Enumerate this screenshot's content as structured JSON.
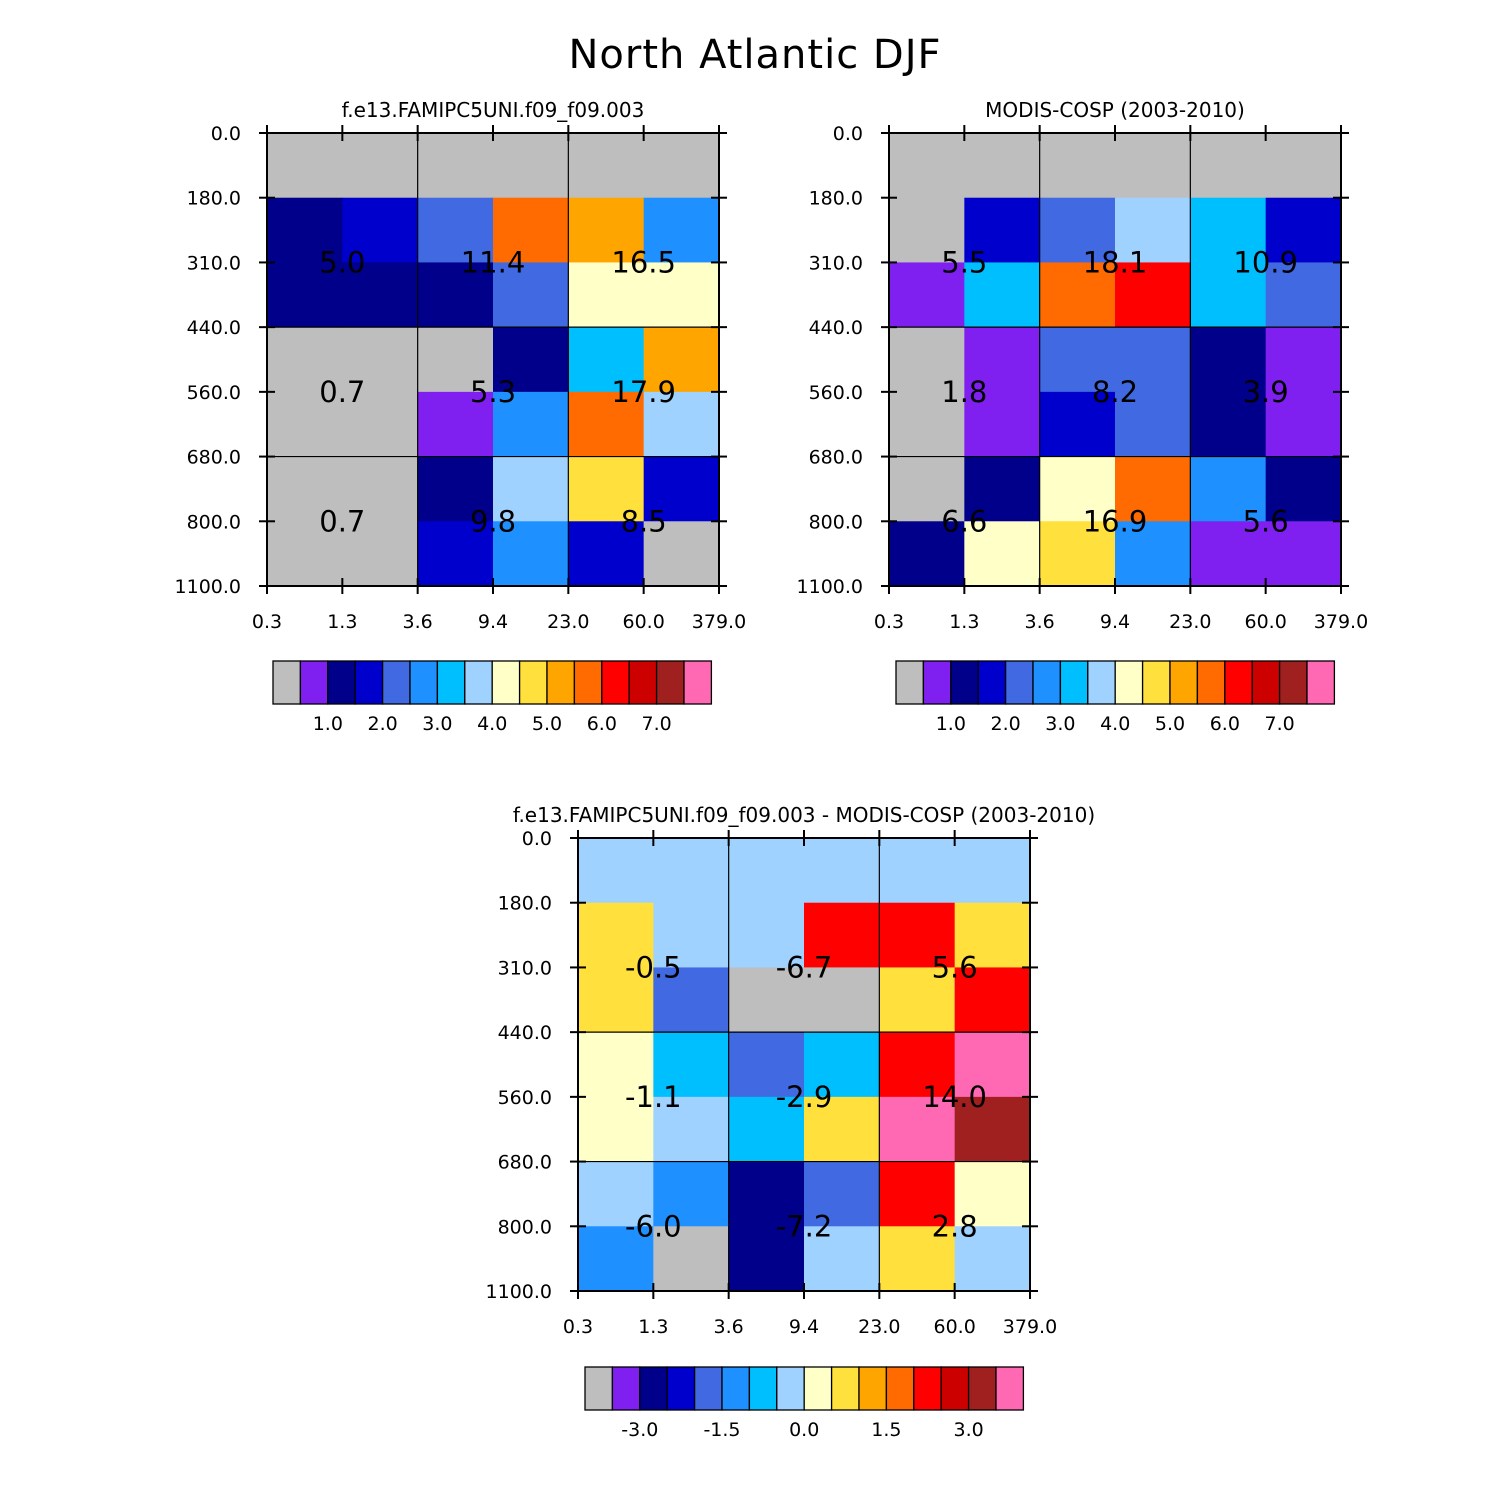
{
  "title": "North Atlantic DJF",
  "colors": {
    "palette": [
      "#bebebe",
      "#8020f0",
      "#00008b",
      "#0000cd",
      "#4169e1",
      "#1e90ff",
      "#00bfff",
      "#a0d2ff",
      "#ffffc8",
      "#ffe03c",
      "#ffa500",
      "#ff6b00",
      "#ff0000",
      "#cd0000",
      "#a02020",
      "#ff69b4"
    ]
  },
  "chart_data": [
    {
      "type": "heatmap",
      "title": "f.e13.FAMIPC5UNI.f09_f09.003",
      "xticks": [
        "0.3",
        "1.3",
        "3.6",
        "9.4",
        "23.0",
        "60.0",
        "379.0"
      ],
      "yticks": [
        "0.0",
        "180.0",
        "310.0",
        "440.0",
        "560.0",
        "680.0",
        "800.0",
        "1100.0"
      ],
      "cells": [
        [
          0,
          0,
          0,
          0,
          0,
          0
        ],
        [
          2,
          3,
          4,
          11,
          10,
          5
        ],
        [
          2,
          2,
          2,
          4,
          8,
          8
        ],
        [
          0,
          0,
          0,
          2,
          6,
          10
        ],
        [
          0,
          0,
          1,
          5,
          11,
          7
        ],
        [
          0,
          0,
          2,
          7,
          9,
          3
        ],
        [
          0,
          0,
          3,
          5,
          3,
          0
        ]
      ],
      "cell_values": [
        "5.0",
        "11.4",
        "16.5",
        "0.7",
        "5.3",
        "17.9",
        "0.7",
        "9.8",
        "8.5"
      ],
      "colorbar": {
        "labels": [
          "1.0",
          "2.0",
          "3.0",
          "4.0",
          "5.0",
          "6.0",
          "7.0"
        ]
      }
    },
    {
      "type": "heatmap",
      "title": "MODIS-COSP (2003-2010)",
      "xticks": [
        "0.3",
        "1.3",
        "3.6",
        "9.4",
        "23.0",
        "60.0",
        "379.0"
      ],
      "yticks": [
        "0.0",
        "180.0",
        "310.0",
        "440.0",
        "560.0",
        "680.0",
        "800.0",
        "1100.0"
      ],
      "cells": [
        [
          0,
          0,
          0,
          0,
          0,
          0
        ],
        [
          0,
          3,
          4,
          7,
          6,
          3
        ],
        [
          1,
          6,
          11,
          12,
          6,
          4
        ],
        [
          0,
          1,
          4,
          4,
          2,
          1
        ],
        [
          0,
          1,
          3,
          4,
          2,
          1
        ],
        [
          0,
          2,
          8,
          11,
          5,
          2
        ],
        [
          2,
          8,
          9,
          5,
          1,
          1
        ]
      ],
      "cell_values": [
        "5.5",
        "18.1",
        "10.9",
        "1.8",
        "8.2",
        "3.9",
        "6.6",
        "16.9",
        "5.6"
      ],
      "colorbar": {
        "labels": [
          "1.0",
          "2.0",
          "3.0",
          "4.0",
          "5.0",
          "6.0",
          "7.0"
        ]
      }
    },
    {
      "type": "heatmap",
      "title": "f.e13.FAMIPC5UNI.f09_f09.003 - MODIS-COSP (2003-2010)",
      "xticks": [
        "0.3",
        "1.3",
        "3.6",
        "9.4",
        "23.0",
        "60.0",
        "379.0"
      ],
      "yticks": [
        "0.0",
        "180.0",
        "310.0",
        "440.0",
        "560.0",
        "680.0",
        "800.0",
        "1100.0"
      ],
      "cells": [
        [
          7,
          7,
          7,
          7,
          7,
          7
        ],
        [
          9,
          7,
          7,
          12,
          12,
          9
        ],
        [
          9,
          4,
          0,
          0,
          9,
          12
        ],
        [
          8,
          6,
          4,
          6,
          12,
          15
        ],
        [
          8,
          7,
          6,
          9,
          15,
          14
        ],
        [
          7,
          5,
          2,
          4,
          12,
          8
        ],
        [
          5,
          0,
          2,
          7,
          9,
          7
        ]
      ],
      "cell_values": [
        "-0.5",
        "-6.7",
        "5.6",
        "-1.1",
        "-2.9",
        "14.0",
        "-6.0",
        "-7.2",
        "2.8"
      ],
      "colorbar": {
        "labels": [
          "-3.0",
          "-1.5",
          "0.0",
          "1.5",
          "3.0"
        ]
      }
    }
  ]
}
